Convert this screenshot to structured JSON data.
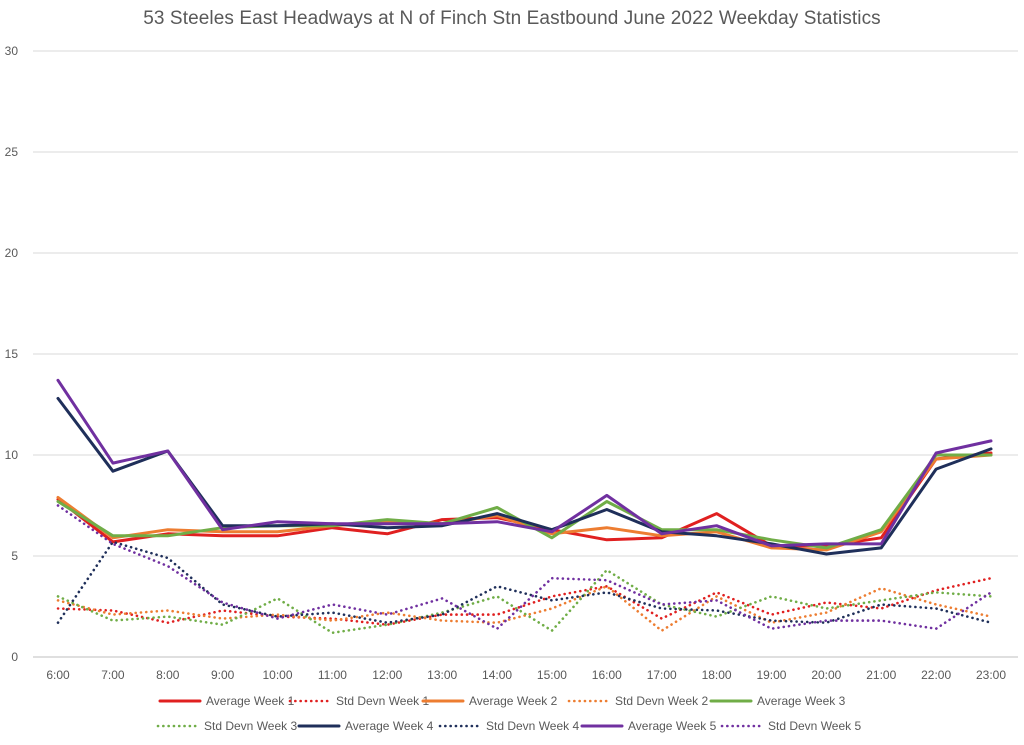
{
  "chart_data": {
    "type": "line",
    "title": "53 Steeles East Headways at N of Finch Stn Eastbound June 2022 Weekday Statistics",
    "xlabel": "",
    "ylabel": "",
    "ylim": [
      0,
      30
    ],
    "yticks": [
      0,
      5,
      10,
      15,
      20,
      25,
      30
    ],
    "grid": true,
    "legend_position": "bottom",
    "categories": [
      "6:00",
      "7:00",
      "8:00",
      "9:00",
      "10:00",
      "11:00",
      "12:00",
      "13:00",
      "14:00",
      "15:00",
      "16:00",
      "17:00",
      "18:00",
      "19:00",
      "20:00",
      "21:00",
      "22:00",
      "23:00"
    ],
    "series": [
      {
        "name": "Average Week 1",
        "color": "#e02020",
        "dash": "solid",
        "values": [
          7.8,
          5.7,
          6.1,
          6.0,
          6.0,
          6.4,
          6.1,
          6.8,
          6.9,
          6.3,
          5.8,
          5.9,
          7.1,
          5.5,
          5.5,
          5.9,
          9.8,
          10.1
        ]
      },
      {
        "name": "Std Devn Week 1",
        "color": "#e02020",
        "dash": "dotted",
        "values": [
          2.4,
          2.3,
          1.7,
          2.3,
          2.0,
          1.9,
          1.6,
          2.1,
          2.1,
          3.0,
          3.5,
          1.9,
          3.2,
          2.1,
          2.7,
          2.4,
          3.3,
          3.9
        ]
      },
      {
        "name": "Average Week 2",
        "color": "#ed7d31",
        "dash": "solid",
        "values": [
          7.9,
          5.9,
          6.3,
          6.2,
          6.2,
          6.5,
          6.7,
          6.6,
          7.0,
          6.1,
          6.4,
          6.0,
          6.2,
          5.4,
          5.3,
          6.2,
          9.8,
          10.0
        ]
      },
      {
        "name": "Std Devn Week 2",
        "color": "#ed7d31",
        "dash": "dotted",
        "values": [
          2.8,
          2.1,
          2.3,
          1.9,
          2.1,
          1.8,
          2.2,
          1.8,
          1.7,
          2.4,
          3.5,
          1.3,
          3.0,
          1.7,
          2.2,
          3.4,
          2.6,
          2.0
        ]
      },
      {
        "name": "Average Week 3",
        "color": "#70ad47",
        "dash": "solid",
        "values": [
          7.7,
          6.0,
          6.0,
          6.4,
          6.5,
          6.5,
          6.8,
          6.6,
          7.4,
          5.9,
          7.7,
          6.3,
          6.3,
          5.8,
          5.4,
          6.3,
          10.0,
          10.0
        ]
      },
      {
        "name": "Std Devn Week 3",
        "color": "#70ad47",
        "dash": "dotted",
        "values": [
          3.0,
          1.8,
          2.0,
          1.6,
          2.9,
          1.2,
          1.6,
          2.2,
          3.0,
          1.3,
          4.3,
          2.6,
          2.0,
          3.0,
          2.4,
          2.8,
          3.2,
          3.0
        ]
      },
      {
        "name": "Average Week 4",
        "color": "#1f2f5a",
        "dash": "solid",
        "values": [
          12.8,
          9.2,
          10.2,
          6.5,
          6.5,
          6.6,
          6.4,
          6.5,
          7.1,
          6.3,
          7.3,
          6.2,
          6.0,
          5.6,
          5.1,
          5.4,
          9.3,
          10.3
        ]
      },
      {
        "name": "Std Devn Week 4",
        "color": "#1f2f5a",
        "dash": "dotted",
        "values": [
          1.7,
          5.7,
          4.9,
          2.6,
          2.0,
          2.2,
          1.7,
          2.1,
          3.5,
          2.8,
          3.2,
          2.4,
          2.3,
          1.8,
          1.7,
          2.6,
          2.4,
          1.7
        ]
      },
      {
        "name": "Average Week 5",
        "color": "#7030a0",
        "dash": "solid",
        "values": [
          13.7,
          9.6,
          10.2,
          6.3,
          6.7,
          6.6,
          6.6,
          6.6,
          6.7,
          6.2,
          8.0,
          6.1,
          6.5,
          5.5,
          5.6,
          5.6,
          10.1,
          10.7
        ]
      },
      {
        "name": "Std Devn Week 5",
        "color": "#7030a0",
        "dash": "dotted",
        "values": [
          7.5,
          5.6,
          4.5,
          2.7,
          1.9,
          2.6,
          2.1,
          2.9,
          1.4,
          3.9,
          3.8,
          2.6,
          2.8,
          1.4,
          1.8,
          1.8,
          1.4,
          3.2
        ]
      }
    ]
  }
}
